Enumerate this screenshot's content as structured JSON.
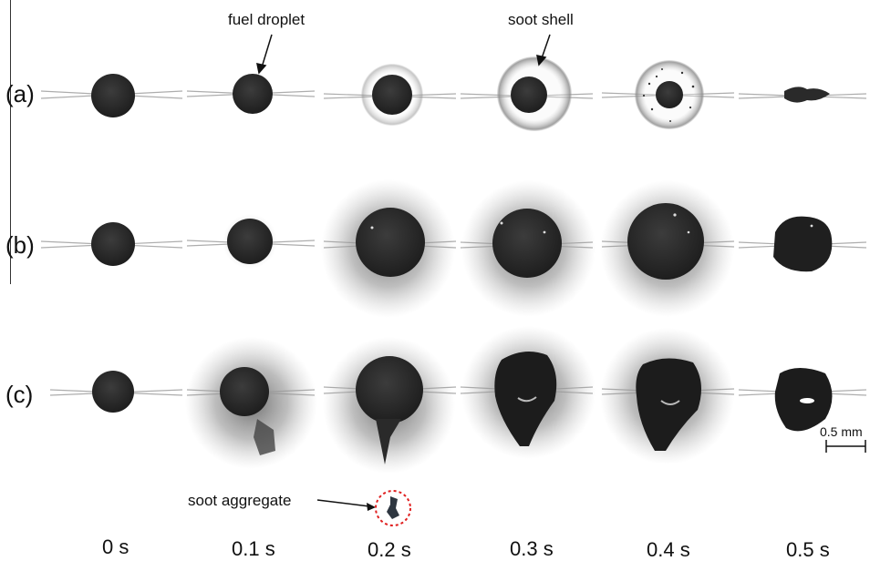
{
  "rows": [
    {
      "label": "(a)"
    },
    {
      "label": "(b)"
    },
    {
      "label": "(c)"
    }
  ],
  "times": [
    "0 s",
    "0.1 s",
    "0.2 s",
    "0.3 s",
    "0.4 s",
    "0.5 s"
  ],
  "annotations": {
    "fuel_droplet": "fuel droplet",
    "soot_shell": "soot shell",
    "soot_aggregate": "soot aggregate",
    "scale_bar": "0.5 mm"
  },
  "colors": {
    "droplet": "#2b2b2b",
    "soot_cloud": "#6f6f6f",
    "highlight_circle": "#e02020"
  }
}
